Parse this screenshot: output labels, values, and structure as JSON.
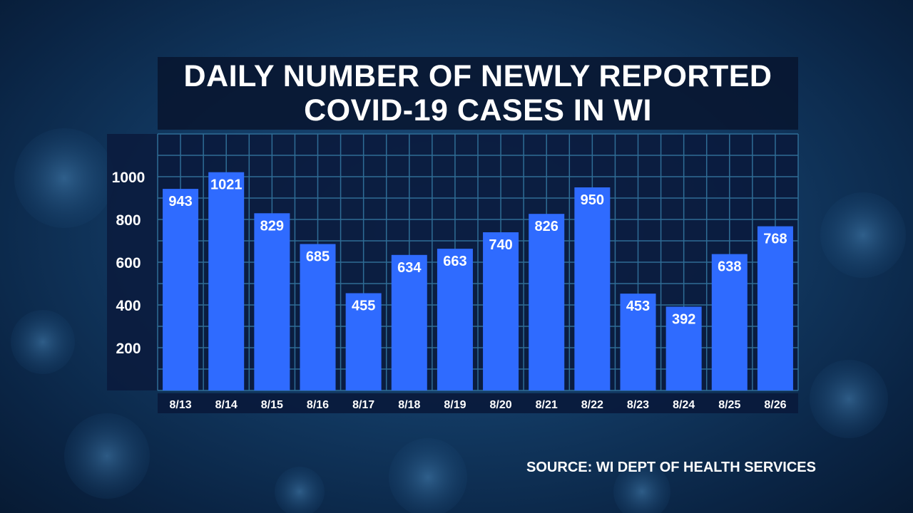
{
  "title_lines": [
    "DAILY NUMBER OF NEWLY REPORTED",
    "COVID-19 CASES IN WI"
  ],
  "source": "SOURCE: WI DEPT OF HEALTH SERVICES",
  "colors": {
    "bar": "#2f6bff",
    "plot_background": "#0a1a3c",
    "grid": "#2f6d96",
    "text": "#ffffff"
  },
  "chart_data": {
    "type": "bar",
    "title": "DAILY NUMBER OF NEWLY REPORTED COVID-19 CASES IN WI",
    "categories": [
      "8/13",
      "8/14",
      "8/15",
      "8/16",
      "8/17",
      "8/18",
      "8/19",
      "8/20",
      "8/21",
      "8/22",
      "8/23",
      "8/24",
      "8/25",
      "8/26"
    ],
    "values": [
      943,
      1021,
      829,
      685,
      455,
      634,
      663,
      740,
      826,
      950,
      453,
      392,
      638,
      768
    ],
    "yticks": [
      200,
      400,
      600,
      800,
      1000
    ],
    "ylim": [
      0,
      1200
    ],
    "grid": true,
    "data_labels": true
  }
}
